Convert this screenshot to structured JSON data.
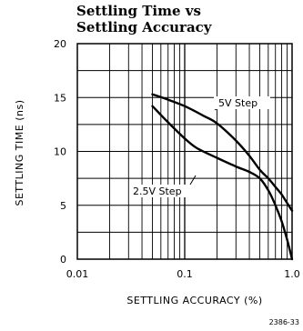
{
  "chart_data": {
    "type": "line",
    "title_lines": [
      "Settling Time vs",
      "Settling Accuracy"
    ],
    "xlabel": "SETTLING ACCURACY (%)",
    "ylabel": "SETTLING TIME (ns)",
    "xscale": "log",
    "xlim": [
      0.01,
      1.0
    ],
    "ylim": [
      0,
      20
    ],
    "grid": true,
    "x_ticks": [
      {
        "value": 0.01,
        "label": "0.01"
      },
      {
        "value": 0.1,
        "label": "0.1"
      },
      {
        "value": 1.0,
        "label": "1.0"
      }
    ],
    "y_ticks": [
      {
        "value": 0,
        "label": "0"
      },
      {
        "value": 5,
        "label": "5"
      },
      {
        "value": 10,
        "label": "10"
      },
      {
        "value": 15,
        "label": "15"
      },
      {
        "value": 20,
        "label": "20"
      }
    ],
    "series": [
      {
        "name": "5V Step",
        "x": [
          0.05,
          0.07,
          0.1,
          0.15,
          0.2,
          0.3,
          0.4,
          0.5,
          0.6,
          0.7,
          0.8,
          0.9,
          1.0
        ],
        "y": [
          15.3,
          14.8,
          14.2,
          13.3,
          12.6,
          11.0,
          9.6,
          8.3,
          7.5,
          6.7,
          6.0,
          5.2,
          4.5
        ]
      },
      {
        "name": "2.5V Step",
        "x": [
          0.05,
          0.07,
          0.1,
          0.13,
          0.2,
          0.3,
          0.4,
          0.5,
          0.6,
          0.7,
          0.8,
          0.9,
          1.0
        ],
        "y": [
          14.2,
          12.7,
          11.2,
          10.3,
          9.4,
          8.6,
          8.1,
          7.5,
          6.4,
          5.0,
          3.5,
          1.8,
          0.0
        ]
      }
    ],
    "annotations": [
      "5V Step",
      "2.5V Step"
    ],
    "figure_id": "2386-33"
  }
}
